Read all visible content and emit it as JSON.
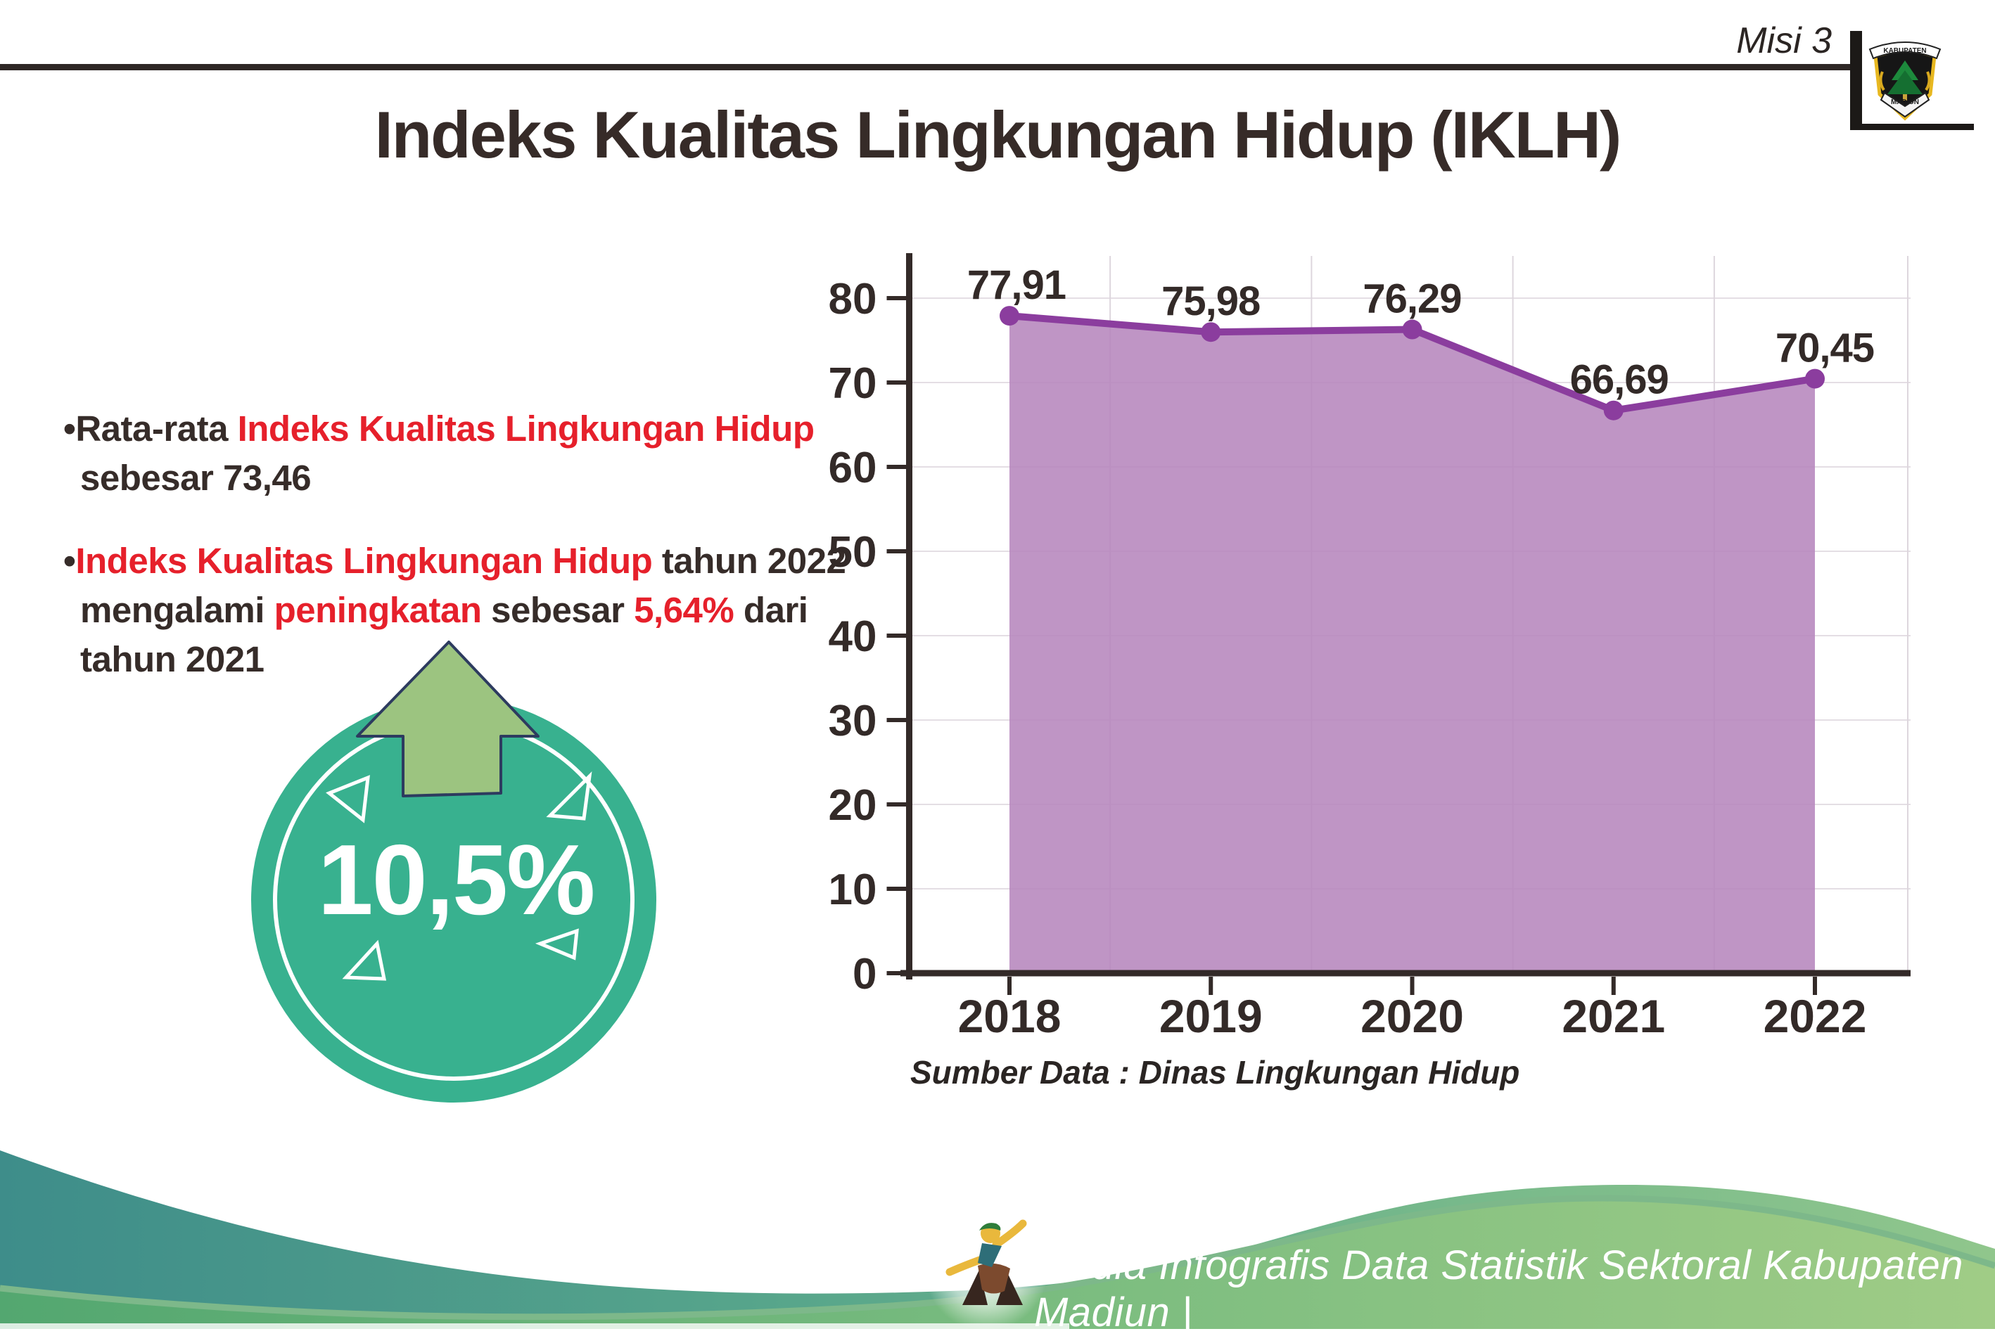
{
  "header": {
    "mission_label": "Misi 3",
    "logo": {
      "top_banner": "KABUPATEN",
      "bottom_banner": "MADIUN"
    }
  },
  "title": "Indeks Kualitas Lingkungan Hidup (IKLH)",
  "bullets": [
    {
      "lines": [
        [
          {
            "t": "•Rata-rata ",
            "c": "dark"
          },
          {
            "t": "Indeks Kualitas Lingkungan Hidup",
            "c": "red"
          }
        ],
        [
          {
            "t": "sebesar 73,46",
            "c": "dark"
          }
        ]
      ]
    },
    {
      "lines": [
        [
          {
            "t": "•",
            "c": "dark"
          },
          {
            "t": "Indeks Kualitas Lingkungan Hidup",
            "c": "red"
          },
          {
            "t": " tahun 2022",
            "c": "dark"
          }
        ],
        [
          {
            "t": "mengalami ",
            "c": "dark"
          },
          {
            "t": "peningkatan",
            "c": "red"
          },
          {
            "t": " sebesar ",
            "c": "dark"
          },
          {
            "t": "5,64%",
            "c": "red"
          },
          {
            "t": " dari",
            "c": "dark"
          }
        ],
        [
          {
            "t": "tahun 2021",
            "c": "dark"
          }
        ]
      ]
    }
  ],
  "badge": {
    "value": "10,5%",
    "direction": "up"
  },
  "chart_data": {
    "type": "area",
    "title": "",
    "categories": [
      "2018",
      "2019",
      "2020",
      "2021",
      "2022"
    ],
    "series": [
      {
        "name": "IKLH",
        "values": [
          77.91,
          75.98,
          76.29,
          66.69,
          70.45
        ]
      }
    ],
    "point_labels": [
      "77,91",
      "75,98",
      "76,29",
      "66,69",
      "70,45"
    ],
    "ylim": [
      0,
      85
    ],
    "yticks": [
      0,
      10,
      20,
      30,
      40,
      50,
      60,
      70,
      80
    ],
    "grid": true,
    "legend": false,
    "line_color": "#8b3d9e",
    "fill_color": "#b685bc",
    "source": "Sumber Data : Dinas Lingkungan Hidup"
  },
  "footer": {
    "credit": "Media Infografis Data Statistik Sektoral Kabupaten Madiun |"
  },
  "colors": {
    "accent_red": "#e6202b",
    "text_dark": "#362c29",
    "badge_teal": "#38b18f",
    "arrow_green": "#9cc480",
    "arrow_outline": "#2d3b5f",
    "chart_line_purple": "#8b3d9e",
    "chart_fill_purple": "#b685bc",
    "footer_teal": "#3e8d8a",
    "footer_green": "#8fc68c"
  }
}
